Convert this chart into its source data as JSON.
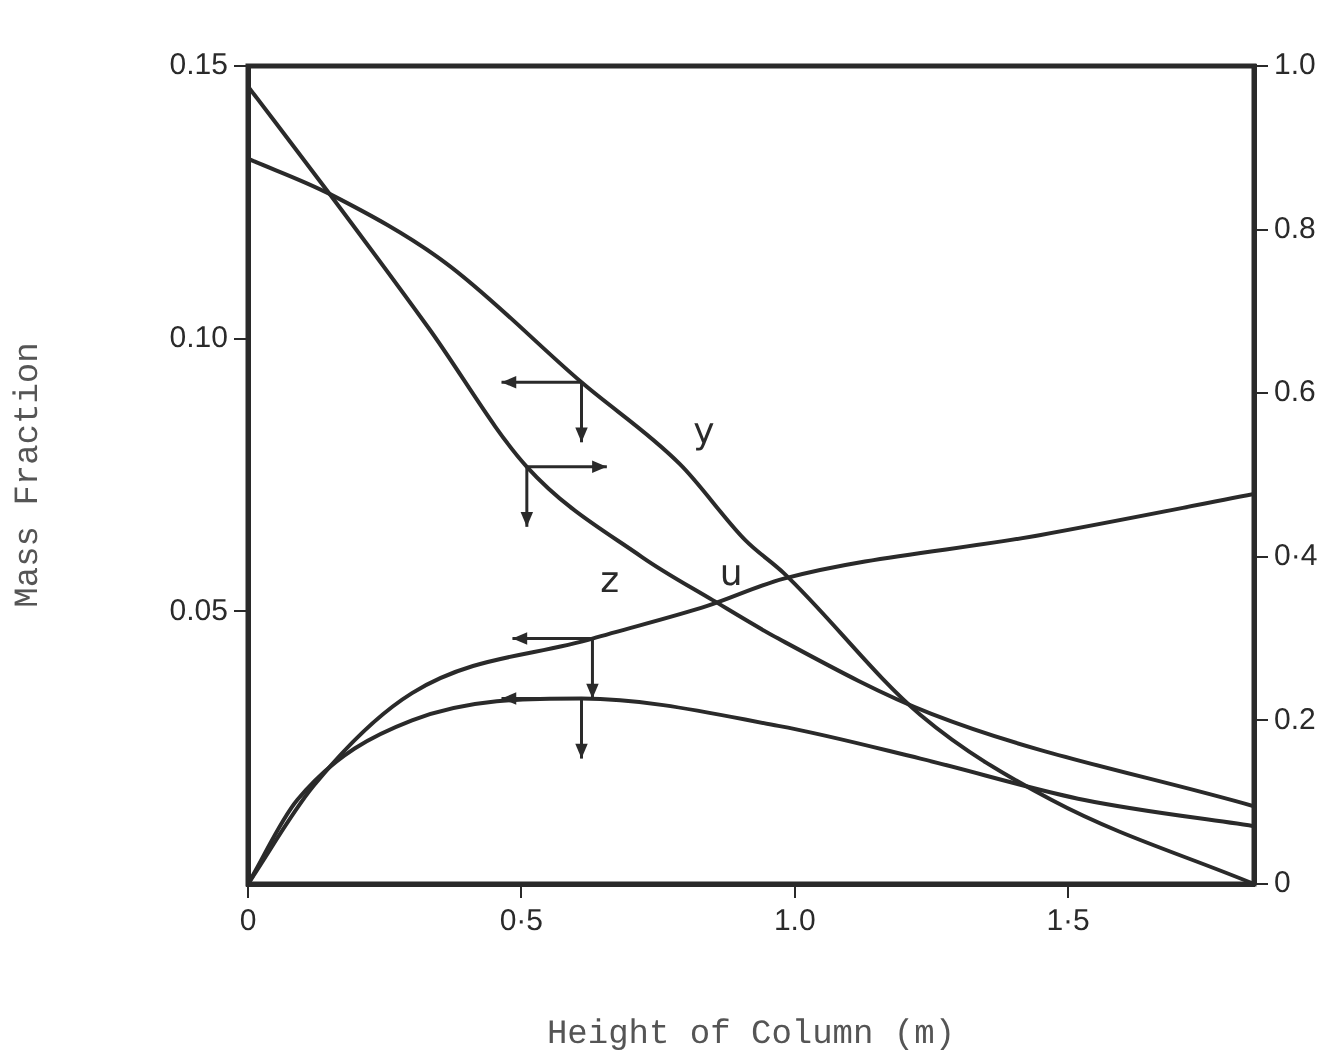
{
  "chart_data": {
    "type": "line",
    "xlabel": "Height of Column (m)",
    "ylabel": "Mass Fraction",
    "legend": false,
    "marker": "none",
    "line_style": "solid",
    "xlim": [
      0,
      1.84
    ],
    "xticks": [
      0,
      {
        "value": 0.5,
        "label": "0·5"
      },
      {
        "value": 1,
        "label": "1.0"
      },
      {
        "value": 1.5,
        "label": "1·5"
      }
    ],
    "ylim": [
      0,
      0.15
    ],
    "yticks": [
      {
        "value": 0.05,
        "label": "0.05"
      },
      {
        "value": 0.1,
        "label": "0.10"
      },
      {
        "value": 0.15,
        "label": "0.15"
      }
    ],
    "y2lim": [
      0,
      1
    ],
    "y2ticks": [
      0,
      0.2,
      {
        "value": 0.4,
        "label": "0·4"
      },
      0.6,
      0.8,
      {
        "value": 1,
        "label": "1.0"
      }
    ],
    "series": [
      {
        "name": "y",
        "color": "#2a2a2a",
        "x": [
          0,
          0.15,
          0.36,
          0.61,
          0.79,
          0.91,
          0.98,
          1.23,
          1.47,
          1.84
        ],
        "values": [
          0.133,
          0.1265,
          0.114,
          0.092,
          0.077,
          0.063,
          0.057,
          0.031,
          0.0154,
          0
        ]
      },
      {
        "name": "z",
        "color": "#2a2a2a",
        "axis": "y2",
        "x": [
          0,
          0.15,
          0.33,
          0.51,
          0.72,
          0.85,
          0.97,
          1.25,
          1.84
        ],
        "values": [
          0.975,
          0.843,
          0.68,
          0.51,
          0.4,
          0.347,
          0.3,
          0.208,
          0.095
        ]
      },
      {
        "name": "u",
        "color": "#2a2a2a",
        "x": [
          0,
          0.12,
          0.3,
          0.63,
          0.84,
          0.98,
          1.45,
          1.84
        ],
        "values": [
          0,
          0.018,
          0.035,
          0.045,
          0.051,
          0.056,
          0.064,
          0.0715
        ]
      },
      {
        "color": "#2a2a2a",
        "x": [
          0,
          0.09,
          0.3,
          0.61,
          0.97,
          1.23,
          1.53,
          1.84
        ],
        "values": [
          0,
          0.0154,
          0.03,
          0.034,
          0.029,
          0.023,
          0.0154,
          0.0106
        ]
      }
    ]
  }
}
